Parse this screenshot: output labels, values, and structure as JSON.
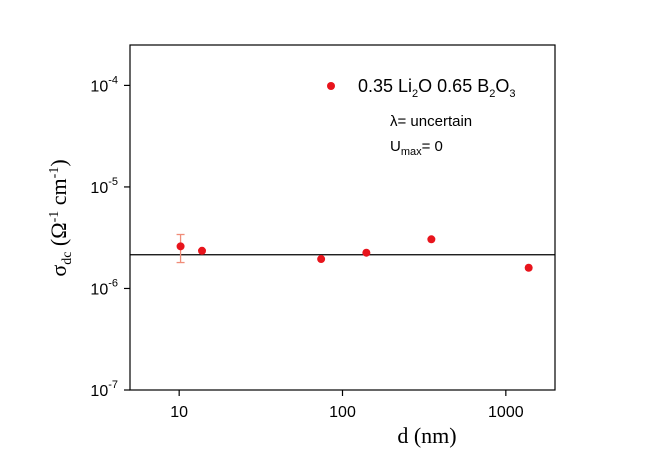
{
  "chart_data": {
    "type": "scatter",
    "x_scale": "log",
    "y_scale": "log",
    "xlim": [
      5,
      2000
    ],
    "ylim": [
      1e-07,
      0.00025
    ],
    "x_ticks": [
      {
        "value": 10,
        "label": "10"
      },
      {
        "value": 100,
        "label": "100"
      },
      {
        "value": 1000,
        "label": "1000"
      }
    ],
    "y_ticks": [
      {
        "value": 0.0001,
        "base": "10",
        "exp": "-4"
      },
      {
        "value": 1e-05,
        "base": "10",
        "exp": "-5"
      },
      {
        "value": 1e-06,
        "base": "10",
        "exp": "-6"
      },
      {
        "value": 1e-07,
        "base": "10",
        "exp": "-7"
      }
    ],
    "xlabel": "d (nm)",
    "ylabel": {
      "sigma": "σ",
      "sub": "dc",
      "open": " (Ω",
      "sup1": "-1",
      "mid": " cm",
      "sup2": "-1",
      "close": ")"
    },
    "legend": {
      "position": "top-right",
      "a": "0.35 Li",
      "a_sub": "2",
      "b": "O  0.65 B",
      "b_sub": "2",
      "c": "O",
      "c_sub": "3",
      "marker_color": "#e8141c"
    },
    "annotations": {
      "lambda": "λ= uncertain",
      "umax_main": "U",
      "umax_sub": "max",
      "umax_rest": "= 0"
    },
    "series": [
      {
        "color": "#e8141c",
        "points": [
          {
            "x": 10.2,
            "y": 2.6e-06,
            "err_low": 1.8e-06,
            "err_high": 3.4e-06
          },
          {
            "x": 13.8,
            "y": 2.35e-06
          },
          {
            "x": 74,
            "y": 1.95e-06
          },
          {
            "x": 140,
            "y": 2.25e-06
          },
          {
            "x": 350,
            "y": 3.05e-06
          },
          {
            "x": 1380,
            "y": 1.6e-06
          }
        ]
      }
    ],
    "fit_line": {
      "y": 2.15e-06,
      "color": "#000000"
    },
    "error_color": "#f08c78",
    "grid": false
  }
}
